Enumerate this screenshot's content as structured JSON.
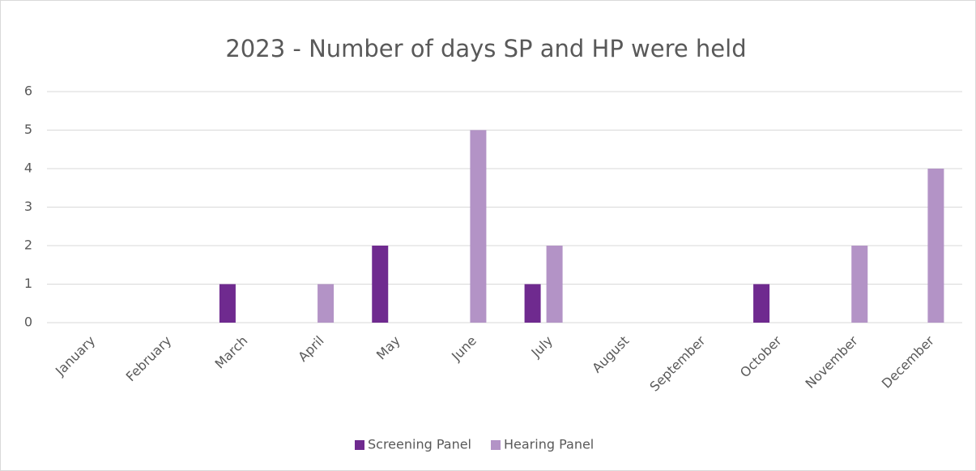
{
  "chart_data": {
    "type": "bar",
    "title": "2023 - Number of days SP and HP were held",
    "categories": [
      "January",
      "February",
      "March",
      "April",
      "May",
      "June",
      "July",
      "August",
      "September",
      "October",
      "November",
      "December"
    ],
    "series": [
      {
        "name": "Screening Panel",
        "color": "#6f2a8f",
        "values": [
          0,
          0,
          1,
          0,
          2,
          0,
          1,
          0,
          0,
          1,
          0,
          0
        ]
      },
      {
        "name": "Hearing Panel",
        "color": "#b393c6",
        "values": [
          0,
          0,
          0,
          1,
          0,
          5,
          2,
          0,
          0,
          0,
          2,
          4
        ]
      }
    ],
    "ylim": [
      0,
      6
    ],
    "yticks": [
      0,
      1,
      2,
      3,
      4,
      5,
      6
    ],
    "grid": true,
    "legend": "bottom"
  }
}
